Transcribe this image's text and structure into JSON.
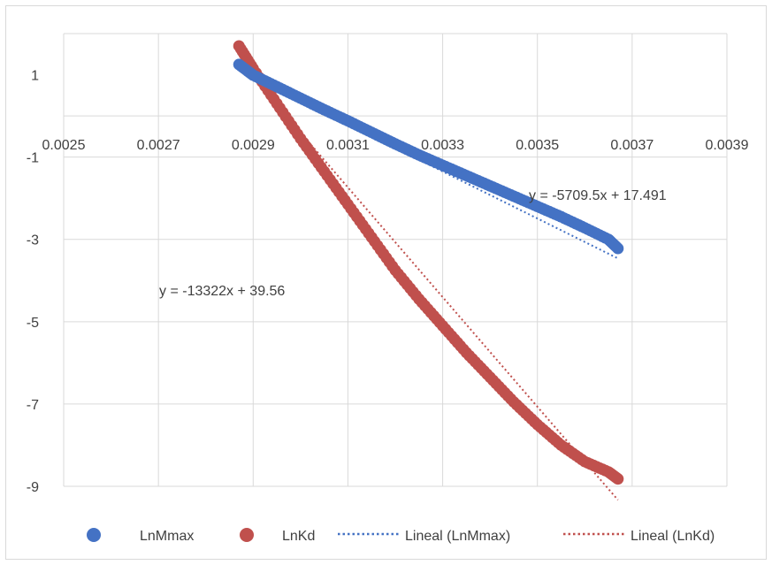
{
  "chart_data": {
    "type": "scatter",
    "title": "",
    "xlabel": "",
    "ylabel": "",
    "xlim": [
      0.0025,
      0.0039
    ],
    "ylim": [
      -9,
      2
    ],
    "x_ticks": [
      "0.0025",
      "0.0027",
      "0.0029",
      "0.0031",
      "0.0033",
      "0.0035",
      "0.0037",
      "0.0039"
    ],
    "y_ticks": [
      "1",
      "-1",
      "-3",
      "-5",
      "-7",
      "-9"
    ],
    "x_tick_values": [
      0.0025,
      0.0027,
      0.0029,
      0.0031,
      0.0033,
      0.0035,
      0.0037,
      0.0039
    ],
    "y_tick_values": [
      1,
      -1,
      -3,
      -5,
      -7,
      -9
    ],
    "y_gridlines": [
      2,
      0,
      -1,
      -3,
      -5,
      -7,
      -9
    ],
    "grid": true,
    "legend_position": "bottom",
    "series": [
      {
        "name": "LnMmax",
        "color": "#4472c4",
        "marker": "circle",
        "points": [
          [
            0.00287,
            1.25
          ],
          [
            0.0029,
            0.99
          ],
          [
            0.00295,
            0.71
          ],
          [
            0.003,
            0.43
          ],
          [
            0.00305,
            0.15
          ],
          [
            0.0031,
            -0.12
          ],
          [
            0.00315,
            -0.4
          ],
          [
            0.0032,
            -0.68
          ],
          [
            0.00325,
            -0.95
          ],
          [
            0.0033,
            -1.2
          ],
          [
            0.00335,
            -1.45
          ],
          [
            0.0034,
            -1.7
          ],
          [
            0.00345,
            -1.95
          ],
          [
            0.0035,
            -2.2
          ],
          [
            0.00355,
            -2.45
          ],
          [
            0.0036,
            -2.72
          ],
          [
            0.00365,
            -3.0
          ],
          [
            0.00367,
            -3.22
          ]
        ]
      },
      {
        "name": "LnKd",
        "color": "#c0504d",
        "marker": "circle",
        "points": [
          [
            0.00287,
            1.7
          ],
          [
            0.0029,
            1.15
          ],
          [
            0.00295,
            0.3
          ],
          [
            0.003,
            -0.55
          ],
          [
            0.00305,
            -1.35
          ],
          [
            0.0031,
            -2.15
          ],
          [
            0.00315,
            -2.95
          ],
          [
            0.0032,
            -3.75
          ],
          [
            0.00325,
            -4.45
          ],
          [
            0.0033,
            -5.1
          ],
          [
            0.00335,
            -5.75
          ],
          [
            0.0034,
            -6.35
          ],
          [
            0.00345,
            -6.95
          ],
          [
            0.0035,
            -7.5
          ],
          [
            0.00355,
            -8.0
          ],
          [
            0.0036,
            -8.4
          ],
          [
            0.00365,
            -8.65
          ],
          [
            0.00367,
            -8.82
          ]
        ]
      }
    ],
    "trendlines": [
      {
        "name": "Lineal (LnMmax)",
        "color": "#4472c4",
        "style": "dotted",
        "slope": -5709.5,
        "intercept": 17.491,
        "x_range": [
          0.00287,
          0.00367
        ],
        "equation": "y = -5709.5x + 17.491"
      },
      {
        "name": "Lineal (LnKd)",
        "color": "#c0504d",
        "style": "dotted",
        "slope": -13322,
        "intercept": 39.56,
        "x_range": [
          0.00287,
          0.00367
        ],
        "equation": "y = -13322x + 39.56"
      }
    ],
    "legend": {
      "items": [
        {
          "label": "LnMmax",
          "kind": "marker",
          "color": "#4472c4"
        },
        {
          "label": "LnKd",
          "kind": "marker",
          "color": "#c0504d"
        },
        {
          "label": "Lineal (LnMmax)",
          "kind": "dotted-line",
          "color": "#4472c4"
        },
        {
          "label": "Lineal (LnKd)",
          "kind": "dotted-line",
          "color": "#c0504d"
        }
      ]
    }
  }
}
